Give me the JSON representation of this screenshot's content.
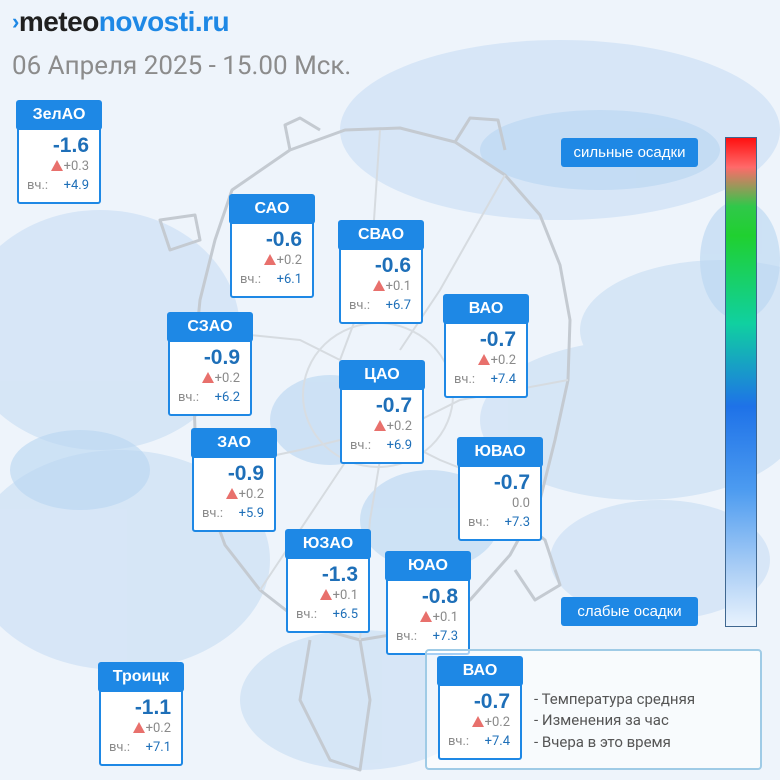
{
  "header": {
    "logo": {
      "prefix": "meteo",
      "suffix": "novosti.ru"
    },
    "date_line": "06 Апреля 2025 - 15.00 Мск."
  },
  "districts": [
    {
      "name": "ЗелАО",
      "temp": "-1.6",
      "delta": "+0.3",
      "delta_up": true,
      "yday_label": "вч.:",
      "yday": "+4.9"
    },
    {
      "name": "САО",
      "temp": "-0.6",
      "delta": "+0.2",
      "delta_up": true,
      "yday_label": "вч.:",
      "yday": "+6.1"
    },
    {
      "name": "СВАО",
      "temp": "-0.6",
      "delta": "+0.1",
      "delta_up": true,
      "yday_label": "вч.:",
      "yday": "+6.7"
    },
    {
      "name": "ВАО",
      "temp": "-0.7",
      "delta": "+0.2",
      "delta_up": true,
      "yday_label": "вч.:",
      "yday": "+7.4"
    },
    {
      "name": "СЗАО",
      "temp": "-0.9",
      "delta": "+0.2",
      "delta_up": true,
      "yday_label": "вч.:",
      "yday": "+6.2"
    },
    {
      "name": "ЦАО",
      "temp": "-0.7",
      "delta": "+0.2",
      "delta_up": true,
      "yday_label": "вч.:",
      "yday": "+6.9"
    },
    {
      "name": "ЗАО",
      "temp": "-0.9",
      "delta": "+0.2",
      "delta_up": true,
      "yday_label": "вч.:",
      "yday": "+5.9"
    },
    {
      "name": "ЮВАО",
      "temp": "-0.7",
      "delta": "0.0",
      "delta_up": false,
      "yday_label": "вч.:",
      "yday": "+7.3"
    },
    {
      "name": "ЮЗАО",
      "temp": "-1.3",
      "delta": "+0.1",
      "delta_up": true,
      "yday_label": "вч.:",
      "yday": "+6.5"
    },
    {
      "name": "ЮАО",
      "temp": "-0.8",
      "delta": "+0.1",
      "delta_up": true,
      "yday_label": "вч.:",
      "yday": "+7.3"
    },
    {
      "name": "Троицк",
      "temp": "-1.1",
      "delta": "+0.2",
      "delta_up": true,
      "yday_label": "вч.:",
      "yday": "+7.1"
    }
  ],
  "precip_scale": {
    "top_label": "сильные осадки",
    "bottom_label": "слабые осадки",
    "colors": [
      "#ff1010",
      "#30c84a",
      "#1e72e8",
      "#e8f2fd"
    ]
  },
  "legend": {
    "sample": {
      "name": "ВАО",
      "temp": "-0.7",
      "delta": "+0.2",
      "delta_up": true,
      "yday_label": "вч.:",
      "yday": "+7.4"
    },
    "lines": [
      "- Температура средняя",
      "- Изменения за час",
      "- Вчера в это время"
    ]
  },
  "colors": {
    "accent": "#1e88e5",
    "temp_text": "#1e6fb8",
    "up_arrow": "#e8706c"
  }
}
